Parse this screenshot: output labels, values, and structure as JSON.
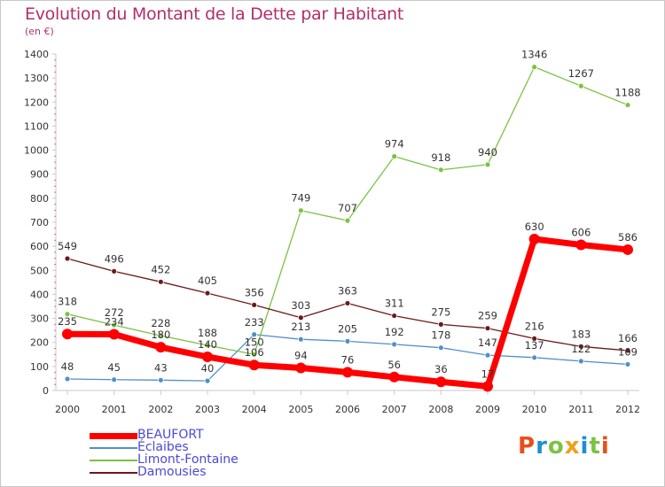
{
  "title": "Evolution du Montant de la Dette par Habitant",
  "subtitle": "(en €)",
  "brand": {
    "text": "Proxiti",
    "colors": [
      "#e84f1c",
      "#1f8fd6",
      "#7cc242",
      "#f0a01c",
      "#1f8fd6",
      "#7cc242",
      "#e84f1c"
    ]
  },
  "colors": {
    "title": "#b0306a",
    "axis": "#c8c8c8",
    "tick_text": "#333333",
    "legend_text": "#4a4ad8"
  },
  "chart_data": {
    "type": "line",
    "title": "Evolution du Montant de la Dette par Habitant",
    "ylabel": "(en €)",
    "xlabel": "",
    "x": [
      "2000",
      "2001",
      "2002",
      "2003",
      "2004",
      "2005",
      "2006",
      "2007",
      "2008",
      "2009",
      "2010",
      "2011",
      "2012"
    ],
    "ylim": [
      0,
      1400
    ],
    "yticks": [
      0,
      100,
      200,
      300,
      400,
      500,
      600,
      700,
      800,
      900,
      1000,
      1100,
      1200,
      1300,
      1400
    ],
    "grid": false,
    "legend_position": "bottom-left",
    "series": [
      {
        "name": "BEAUFORT",
        "color": "#ff0000",
        "values": [
          235,
          234,
          180,
          140,
          106,
          94,
          76,
          56,
          36,
          17,
          630,
          606,
          586
        ]
      },
      {
        "name": "Éclaibes",
        "color": "#4f8fcc",
        "values": [
          48,
          45,
          43,
          40,
          233,
          213,
          205,
          192,
          178,
          147,
          137,
          122,
          109
        ]
      },
      {
        "name": "Limont-Fontaine",
        "color": "#7cc242",
        "values": [
          318,
          272,
          228,
          188,
          150,
          749,
          707,
          974,
          918,
          940,
          1346,
          1267,
          1188
        ]
      },
      {
        "name": "Damousies",
        "color": "#6b1a1a",
        "values": [
          549,
          496,
          452,
          405,
          356,
          303,
          363,
          311,
          275,
          259,
          216,
          183,
          166
        ]
      }
    ]
  }
}
